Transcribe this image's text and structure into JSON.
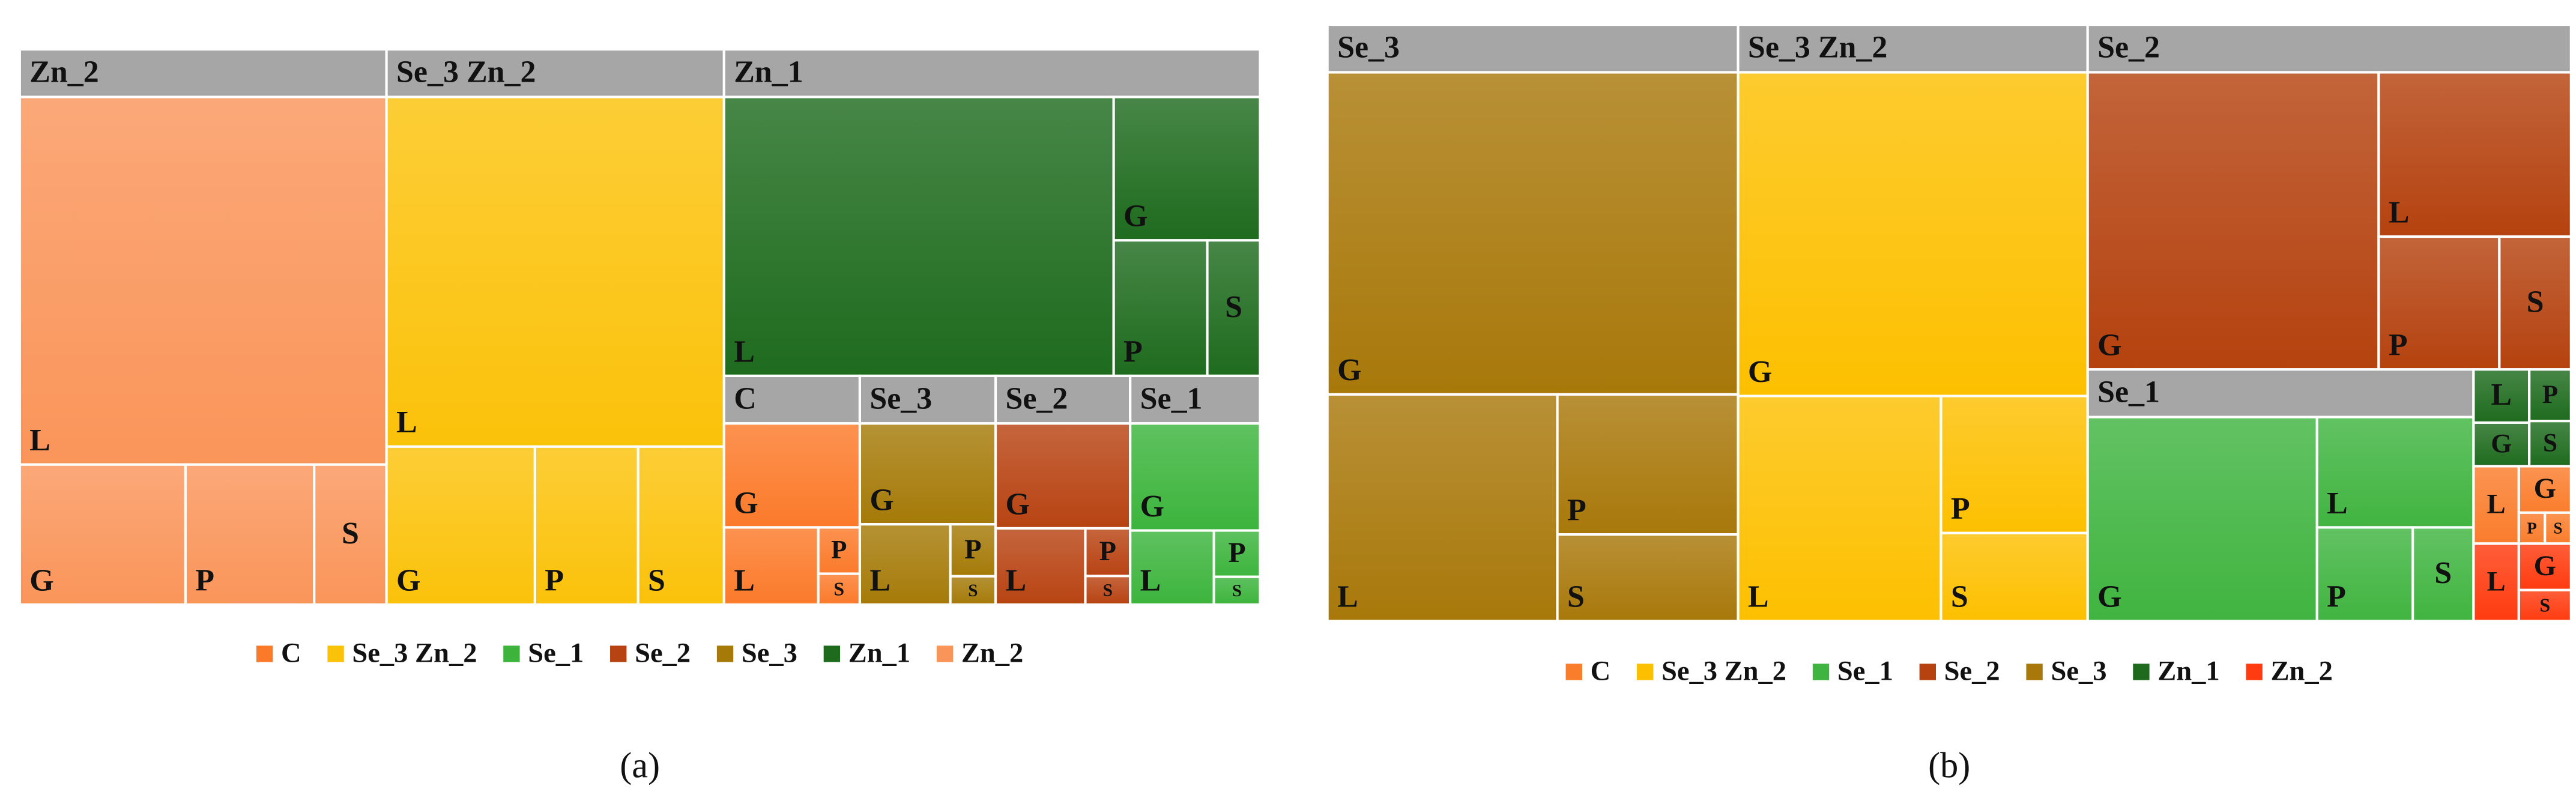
{
  "chart_data": [
    {
      "type": "treemap",
      "caption": "(a)",
      "groups": [
        {
          "name": "C",
          "color": "#fb7a2a",
          "children": [
            {
              "name": "G",
              "value": 66
            },
            {
              "name": "L",
              "value": 34
            },
            {
              "name": "P",
              "value": 9
            },
            {
              "name": "S",
              "value": 6
            }
          ]
        },
        {
          "name": "Se_3 Zn_2",
          "color": "#fbc20a",
          "children": [
            {
              "name": "L",
              "value": 478
            },
            {
              "name": "G",
              "value": 95
            },
            {
              "name": "P",
              "value": 66
            },
            {
              "name": "S",
              "value": 55
            }
          ]
        },
        {
          "name": "Se_1",
          "color": "#3cb43c",
          "children": [
            {
              "name": "G",
              "value": 65
            },
            {
              "name": "L",
              "value": 29
            },
            {
              "name": "P",
              "value": 10
            },
            {
              "name": "S",
              "value": 6
            }
          ]
        },
        {
          "name": "Se_2",
          "color": "#b84312",
          "children": [
            {
              "name": "G",
              "value": 66
            },
            {
              "name": "L",
              "value": 32
            },
            {
              "name": "P",
              "value": 10
            },
            {
              "name": "S",
              "value": 6
            }
          ]
        },
        {
          "name": "Se_3",
          "color": "#a57a08",
          "children": [
            {
              "name": "G",
              "value": 64
            },
            {
              "name": "L",
              "value": 34
            },
            {
              "name": "P",
              "value": 11
            },
            {
              "name": "S",
              "value": 6
            }
          ]
        },
        {
          "name": "Zn_1",
          "color": "#1e6b1e",
          "children": [
            {
              "name": "L",
              "value": 471
            },
            {
              "name": "G",
              "value": 91
            },
            {
              "name": "P",
              "value": 55
            },
            {
              "name": "S",
              "value": 31
            }
          ]
        },
        {
          "name": "Zn_2",
          "color": "#fa955a",
          "children": [
            {
              "name": "L",
              "value": 546
            },
            {
              "name": "G",
              "value": 94
            },
            {
              "name": "P",
              "value": 73
            },
            {
              "name": "S",
              "value": 41
            }
          ]
        }
      ]
    },
    {
      "type": "treemap",
      "caption": "(b)",
      "groups": [
        {
          "name": "C",
          "color": "#fa7d2c",
          "children": [
            {
              "name": "L",
              "value": 13
            },
            {
              "name": "G",
              "value": 9
            },
            {
              "name": "P",
              "value": 3
            },
            {
              "name": "S",
              "value": 3
            }
          ]
        },
        {
          "name": "Se_3 Zn_2",
          "color": "#fdc000",
          "children": [
            {
              "name": "G",
              "value": 456
            },
            {
              "name": "L",
              "value": 184
            },
            {
              "name": "P",
              "value": 81
            },
            {
              "name": "S",
              "value": 52
            }
          ]
        },
        {
          "name": "Se_1",
          "color": "#40b440",
          "children": [
            {
              "name": "G",
              "value": 214
            },
            {
              "name": "L",
              "value": 79
            },
            {
              "name": "P",
              "value": 41
            },
            {
              "name": "S",
              "value": 26
            }
          ]
        },
        {
          "name": "Se_2",
          "color": "#b5420f",
          "children": [
            {
              "name": "G",
              "value": 372
            },
            {
              "name": "L",
              "value": 136
            },
            {
              "name": "P",
              "value": 69
            },
            {
              "name": "S",
              "value": 41
            }
          ]
        },
        {
          "name": "Se_3",
          "color": "#a8780a",
          "children": [
            {
              "name": "G",
              "value": 533
            },
            {
              "name": "L",
              "value": 210
            },
            {
              "name": "P",
              "value": 102
            },
            {
              "name": "S",
              "value": 63
            }
          ]
        },
        {
          "name": "Zn_1",
          "color": "#1e6b1e",
          "children": [
            {
              "name": "L",
              "value": 11
            },
            {
              "name": "G",
              "value": 9
            },
            {
              "name": "P",
              "value": 8
            },
            {
              "name": "S",
              "value": 7
            }
          ]
        },
        {
          "name": "Zn_2",
          "color": "#ff3b0f",
          "children": [
            {
              "name": "L",
              "value": 13
            },
            {
              "name": "G",
              "value": 9
            },
            {
              "name": "S",
              "value": 6
            }
          ]
        }
      ]
    }
  ]
}
